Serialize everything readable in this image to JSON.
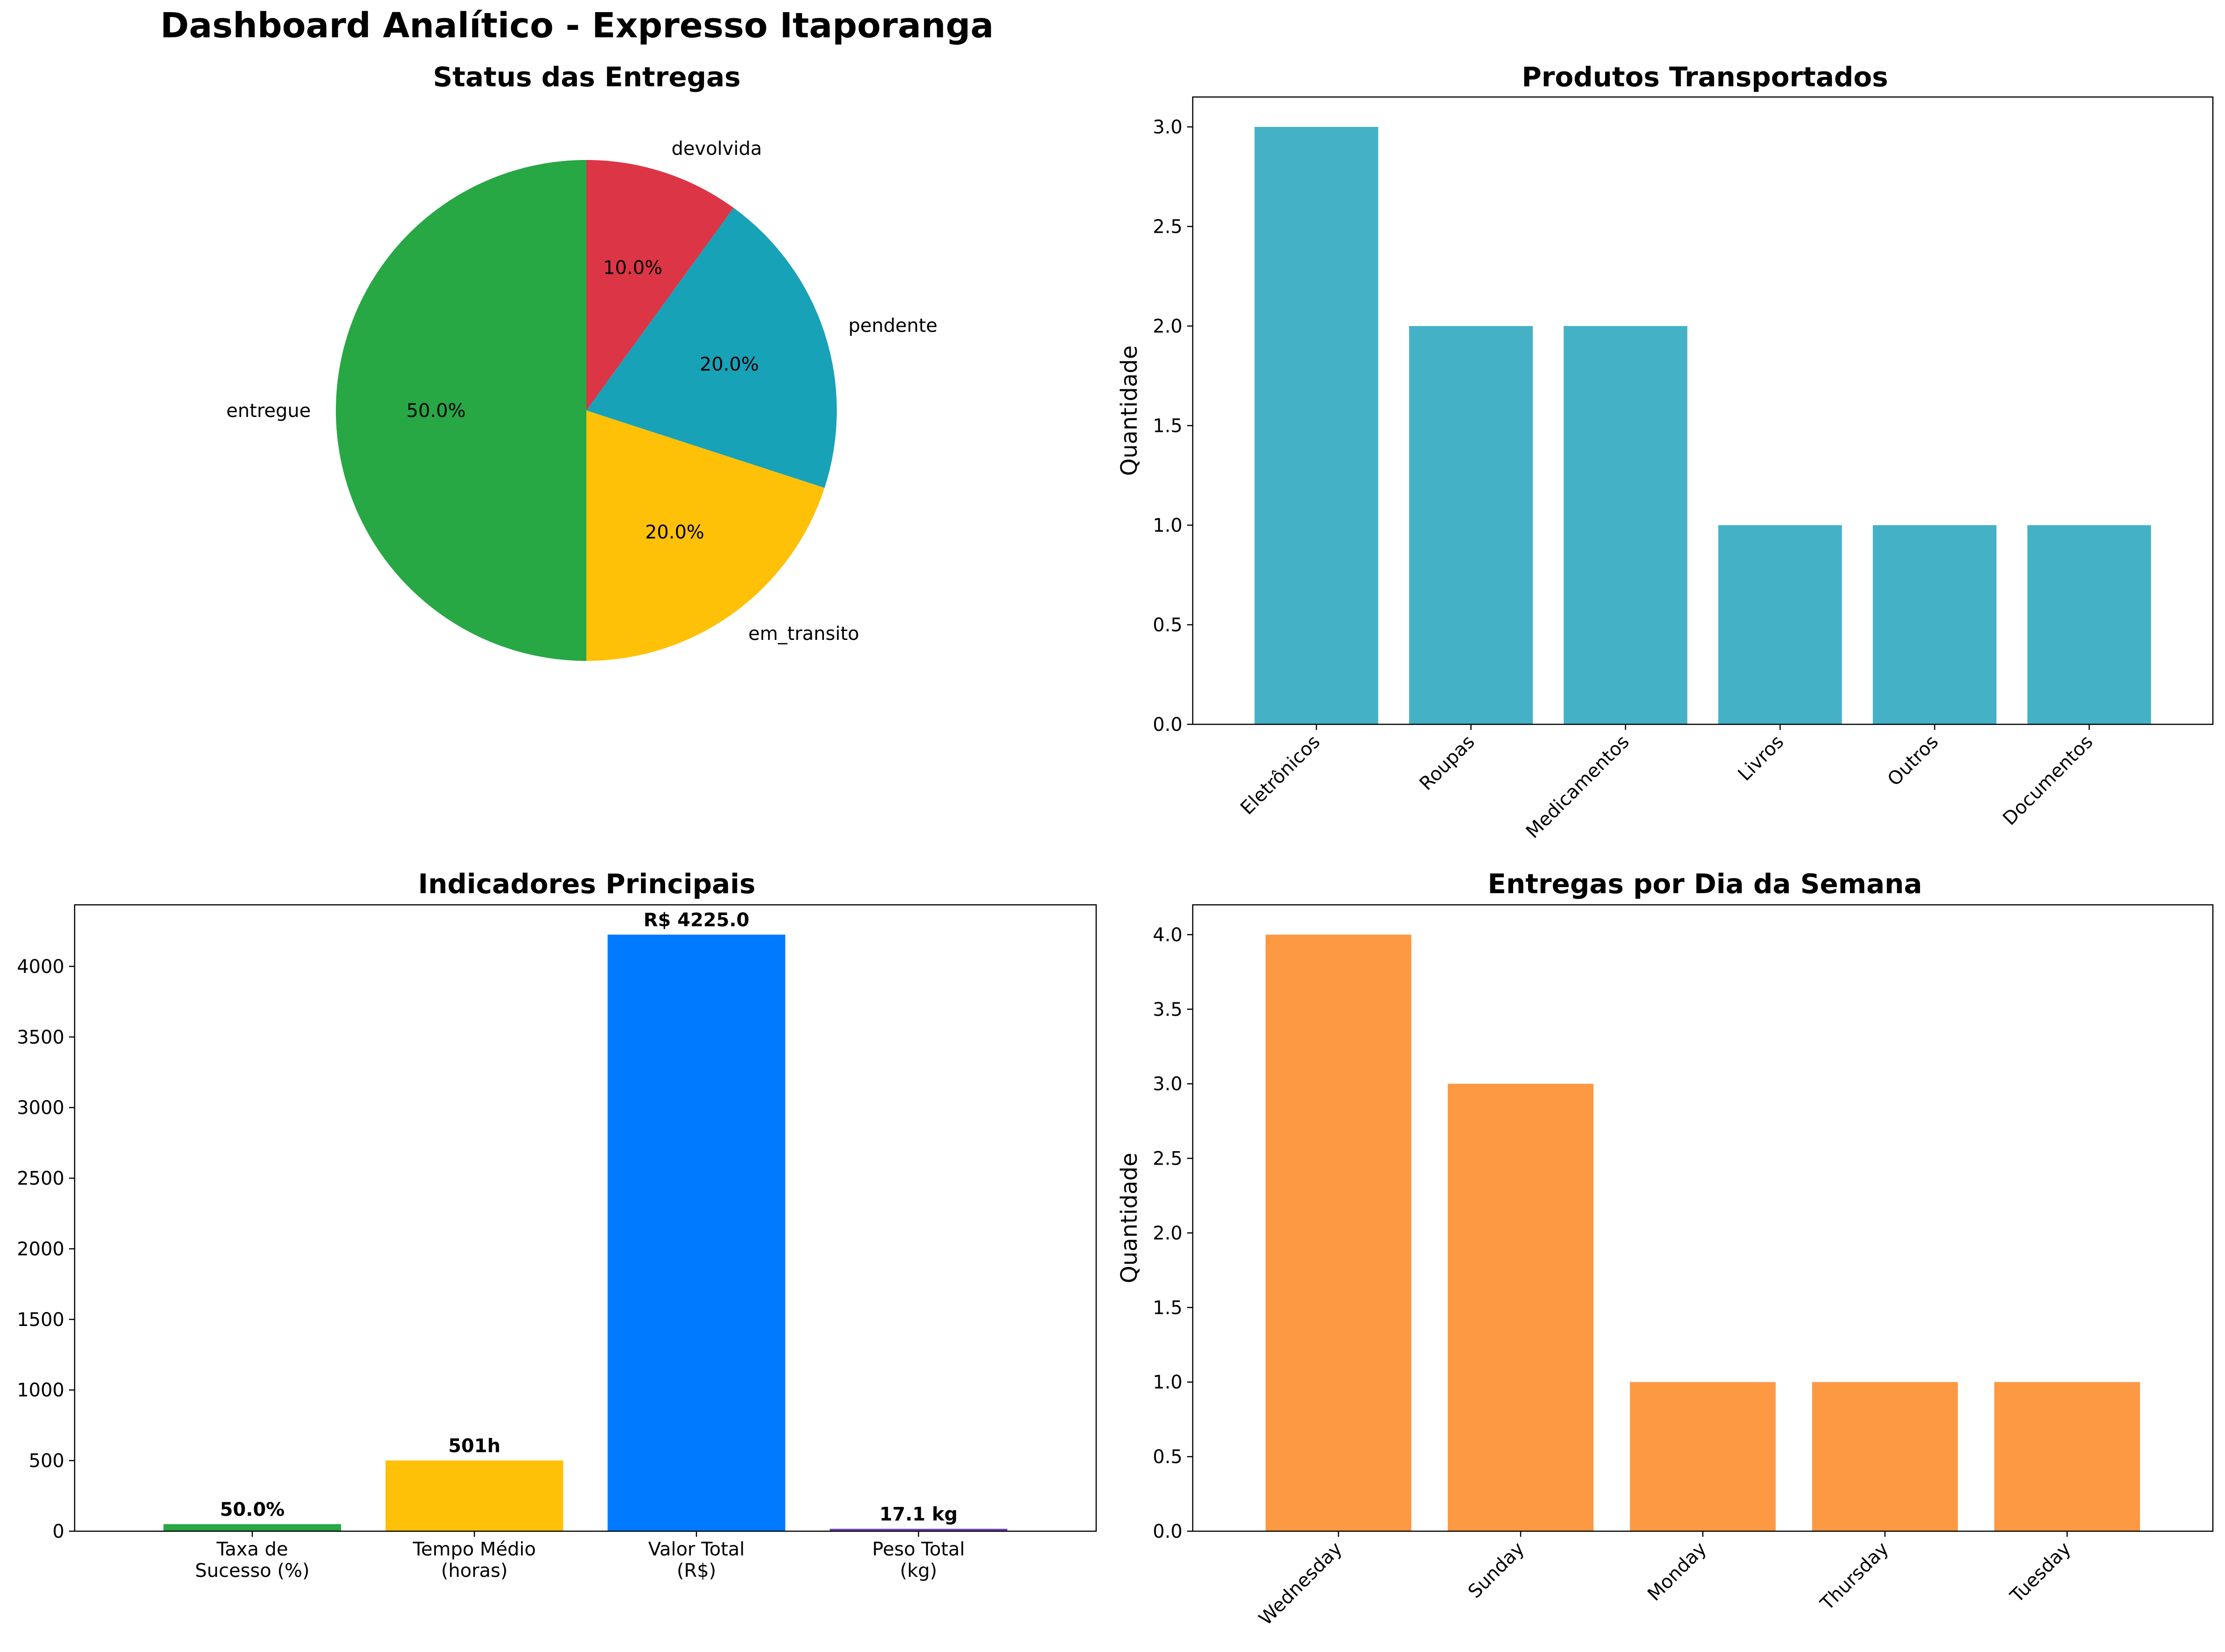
{
  "title": "Dashboard Analítico - Expresso Itaporanga",
  "chart_data": [
    {
      "type": "pie",
      "title": "Status das Entregas",
      "labels": [
        "entregue",
        "em_transito",
        "pendente",
        "devolvida"
      ],
      "values": [
        50.0,
        20.0,
        20.0,
        10.0
      ],
      "value_labels": [
        "50.0%",
        "20.0%",
        "20.0%",
        "10.0%"
      ],
      "colors": [
        "#28a745",
        "#ffc107",
        "#17a2b8",
        "#dc3545"
      ]
    },
    {
      "type": "bar",
      "title": "Produtos Transportados",
      "categories": [
        "Eletrônicos",
        "Roupas",
        "Medicamentos",
        "Livros",
        "Outros",
        "Documentos"
      ],
      "values": [
        3,
        2,
        2,
        1,
        1,
        1
      ],
      "ylabel": "Quantidade",
      "ylim": [
        0,
        3.15
      ],
      "yticks": [
        "0.0",
        "0.5",
        "1.0",
        "1.5",
        "2.0",
        "2.5",
        "3.0"
      ],
      "color": "#45b1c6"
    },
    {
      "type": "bar",
      "title": "Indicadores Principais",
      "categories": [
        "Taxa de\nSucesso (%)",
        "Tempo Médio\n(horas)",
        "Valor Total\n(R$)",
        "Peso Total\n(kg)"
      ],
      "values": [
        50.0,
        501,
        4225.0,
        17.1
      ],
      "value_labels": [
        "50.0%",
        "501h",
        "R$ 4225.0",
        "17.1 kg"
      ],
      "ylim": [
        0,
        4436
      ],
      "yticks": [
        "0",
        "500",
        "1000",
        "1500",
        "2000",
        "2500",
        "3000",
        "3500",
        "4000"
      ],
      "colors": [
        "#28a745",
        "#ffc107",
        "#007bff",
        "#6f42c1"
      ]
    },
    {
      "type": "bar",
      "title": "Entregas por Dia da Semana",
      "categories": [
        "Wednesday",
        "Sunday",
        "Monday",
        "Thursday",
        "Tuesday"
      ],
      "values": [
        4,
        3,
        1,
        1,
        1
      ],
      "ylabel": "Quantidade",
      "ylim": [
        0,
        4.2
      ],
      "yticks": [
        "0.0",
        "0.5",
        "1.0",
        "1.5",
        "2.0",
        "2.5",
        "3.0",
        "3.5",
        "4.0"
      ],
      "color": "#fd9843"
    }
  ]
}
